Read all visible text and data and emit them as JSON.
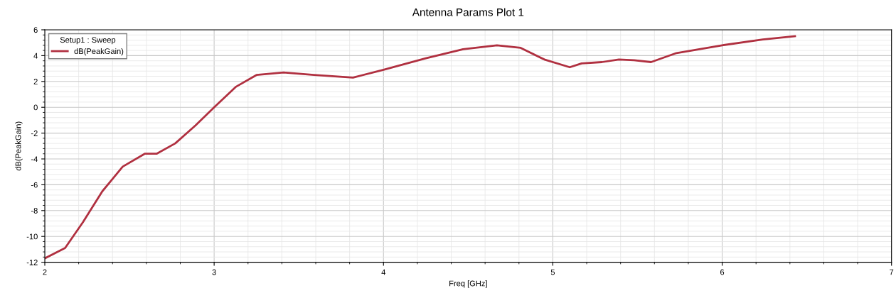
{
  "chart_data": {
    "type": "line",
    "title": "Antenna Params Plot 1",
    "xlabel": "Freq [GHz]",
    "ylabel": "dB(PeakGain)",
    "legend_title": "Setup1 : Sweep",
    "xlim": [
      2,
      7
    ],
    "xticks": [
      2,
      3,
      4,
      5,
      6,
      7
    ],
    "ylim": [
      -12,
      6
    ],
    "yticks": [
      -12,
      -10,
      -8,
      -6,
      -4,
      -2,
      0,
      2,
      4,
      6
    ],
    "grid": true,
    "legend": "top left",
    "line_style": "solid",
    "x": [
      2.0,
      2.12,
      2.225,
      2.34,
      2.46,
      2.59,
      2.66,
      2.77,
      2.89,
      3.0,
      3.13,
      3.25,
      3.41,
      3.59,
      3.82,
      4.0,
      4.25,
      4.47,
      4.67,
      4.81,
      4.95,
      5.1,
      5.17,
      5.29,
      5.39,
      5.48,
      5.58,
      5.73,
      6.0,
      6.24,
      6.43
    ],
    "series": [
      {
        "name": "dB(PeakGain)",
        "color": "#b03040",
        "values": [
          -11.7,
          -10.9,
          -8.9,
          -6.5,
          -4.6,
          -3.6,
          -3.6,
          -2.8,
          -1.4,
          0.0,
          1.6,
          2.5,
          2.7,
          2.5,
          2.3,
          2.9,
          3.8,
          4.5,
          4.8,
          4.6,
          3.7,
          3.1,
          3.4,
          3.5,
          3.7,
          3.65,
          3.5,
          4.2,
          4.8,
          5.25,
          5.5
        ]
      }
    ]
  }
}
